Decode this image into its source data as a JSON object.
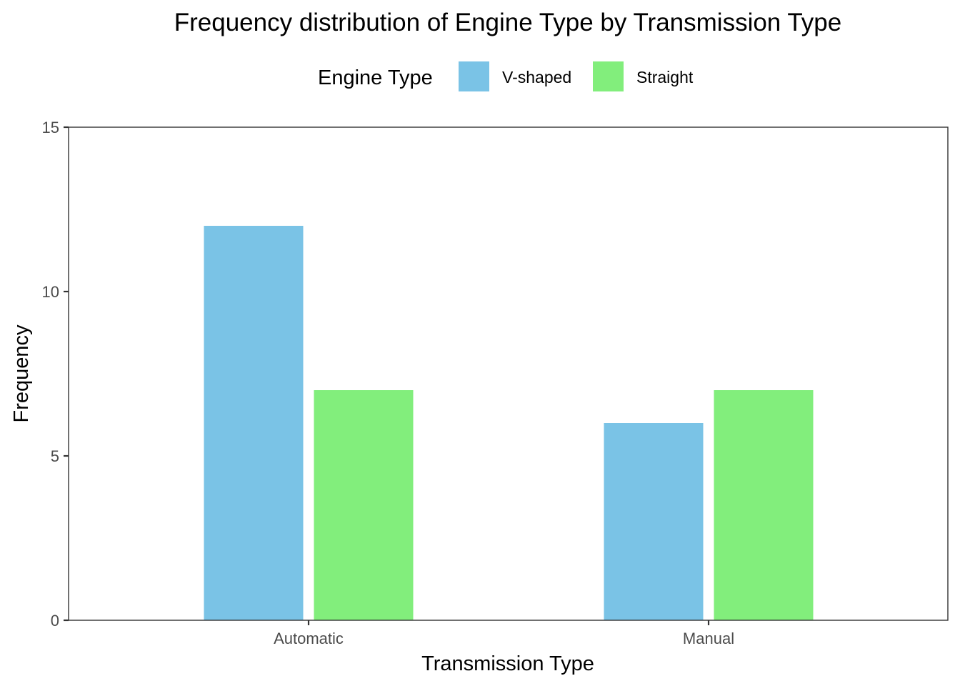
{
  "chart_data": {
    "type": "bar",
    "title": "Frequency distribution of Engine Type by Transmission Type",
    "xlabel": "Transmission Type",
    "ylabel": "Frequency",
    "categories": [
      "Automatic",
      "Manual"
    ],
    "series": [
      {
        "name": "V-shaped",
        "color": "#7AC3E6",
        "values": [
          12,
          6
        ]
      },
      {
        "name": "Straight",
        "color": "#82EE7C",
        "values": [
          7,
          7
        ]
      }
    ],
    "ylim": [
      0,
      15
    ],
    "yticks": [
      0,
      5,
      10,
      15
    ],
    "legend": {
      "title": "Engine Type",
      "position": "top",
      "entries": [
        "V-shaped",
        "Straight"
      ]
    },
    "grid": false
  }
}
